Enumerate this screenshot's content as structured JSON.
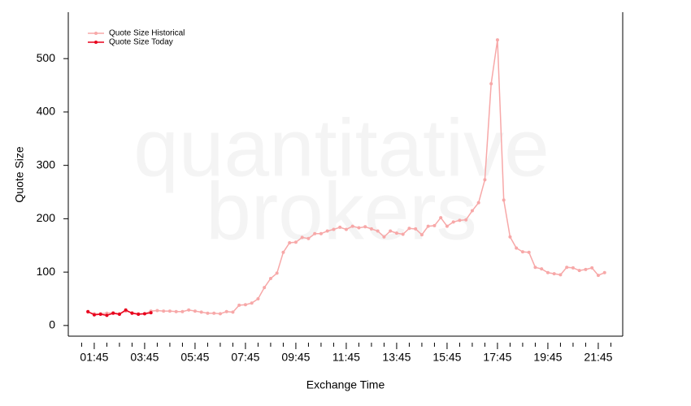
{
  "chart_data": {
    "type": "line",
    "watermark": [
      "quantitative",
      "brokers"
    ],
    "xlabel": "Exchange Time",
    "ylabel": "Quote Size",
    "xlim": [
      0.72,
      22.72
    ],
    "ylim": [
      -20,
      587
    ],
    "xticks": [
      {
        "value": 1.75,
        "label": "01:45"
      },
      {
        "value": 3.75,
        "label": "03:45"
      },
      {
        "value": 5.75,
        "label": "05:45"
      },
      {
        "value": 7.75,
        "label": "07:45"
      },
      {
        "value": 9.75,
        "label": "09:45"
      },
      {
        "value": 11.75,
        "label": "11:45"
      },
      {
        "value": 13.75,
        "label": "13:45"
      },
      {
        "value": 15.75,
        "label": "15:45"
      },
      {
        "value": 17.75,
        "label": "17:45"
      },
      {
        "value": 19.75,
        "label": "19:45"
      },
      {
        "value": 21.75,
        "label": "21:45"
      }
    ],
    "xminorticks": [
      1.25,
      2.25,
      2.75,
      3.25,
      4.25,
      4.75,
      5.25,
      6.25,
      6.75,
      7.25,
      8.25,
      8.75,
      9.25,
      10.25,
      10.75,
      11.25,
      12.25,
      12.75,
      13.25,
      14.25,
      14.75,
      15.25,
      16.25,
      16.75,
      17.25,
      18.25,
      18.75,
      19.25,
      20.25,
      20.75,
      21.25,
      22.25
    ],
    "yticks": [
      0,
      100,
      200,
      300,
      400,
      500
    ],
    "legend": "upper left",
    "series": [
      {
        "name": "Quote Size Historical",
        "color": "#f7a8a8",
        "x": [
          1.5,
          1.75,
          2.0,
          2.25,
          2.5,
          2.75,
          3.0,
          3.25,
          3.5,
          3.75,
          4.0,
          4.25,
          4.5,
          4.75,
          5.0,
          5.25,
          5.5,
          5.75,
          6.0,
          6.25,
          6.5,
          6.75,
          7.0,
          7.25,
          7.5,
          7.75,
          8.0,
          8.25,
          8.5,
          8.75,
          9.0,
          9.25,
          9.5,
          9.75,
          10.0,
          10.25,
          10.5,
          10.75,
          11.0,
          11.25,
          11.5,
          11.75,
          12.0,
          12.25,
          12.5,
          12.75,
          13.0,
          13.25,
          13.5,
          13.75,
          14.0,
          14.25,
          14.5,
          14.75,
          15.0,
          15.25,
          15.5,
          15.75,
          16.0,
          16.25,
          16.5,
          16.75,
          17.0,
          17.25,
          17.5,
          17.75,
          18.0,
          18.25,
          18.5,
          18.75,
          19.0,
          19.25,
          19.5,
          19.75,
          20.0,
          20.25,
          20.5,
          20.75,
          21.0,
          21.25,
          21.5,
          21.75,
          22.0
        ],
        "values": [
          25,
          22,
          22,
          23,
          24,
          22,
          27,
          24,
          22,
          22,
          27,
          28,
          27,
          27,
          26,
          26,
          29,
          27,
          25,
          23,
          23,
          22,
          26,
          25,
          38,
          39,
          42,
          50,
          71,
          88,
          98,
          137,
          155,
          156,
          165,
          163,
          172,
          172,
          177,
          180,
          184,
          180,
          186,
          183,
          185,
          181,
          177,
          166,
          177,
          173,
          171,
          182,
          181,
          170,
          186,
          187,
          202,
          186,
          194,
          197,
          198,
          215,
          230,
          273,
          453,
          535,
          235,
          166,
          145,
          138,
          137,
          109,
          106,
          99,
          97,
          95,
          109,
          108,
          103,
          105,
          108,
          94,
          99
        ]
      },
      {
        "name": "Quote Size Today",
        "color": "#e8001c",
        "x": [
          1.5,
          1.75,
          2.0,
          2.25,
          2.5,
          2.75,
          3.0,
          3.25,
          3.5,
          3.75,
          4.0
        ],
        "values": [
          26,
          20,
          21,
          19,
          23,
          21,
          29,
          23,
          21,
          22,
          24
        ]
      }
    ]
  }
}
